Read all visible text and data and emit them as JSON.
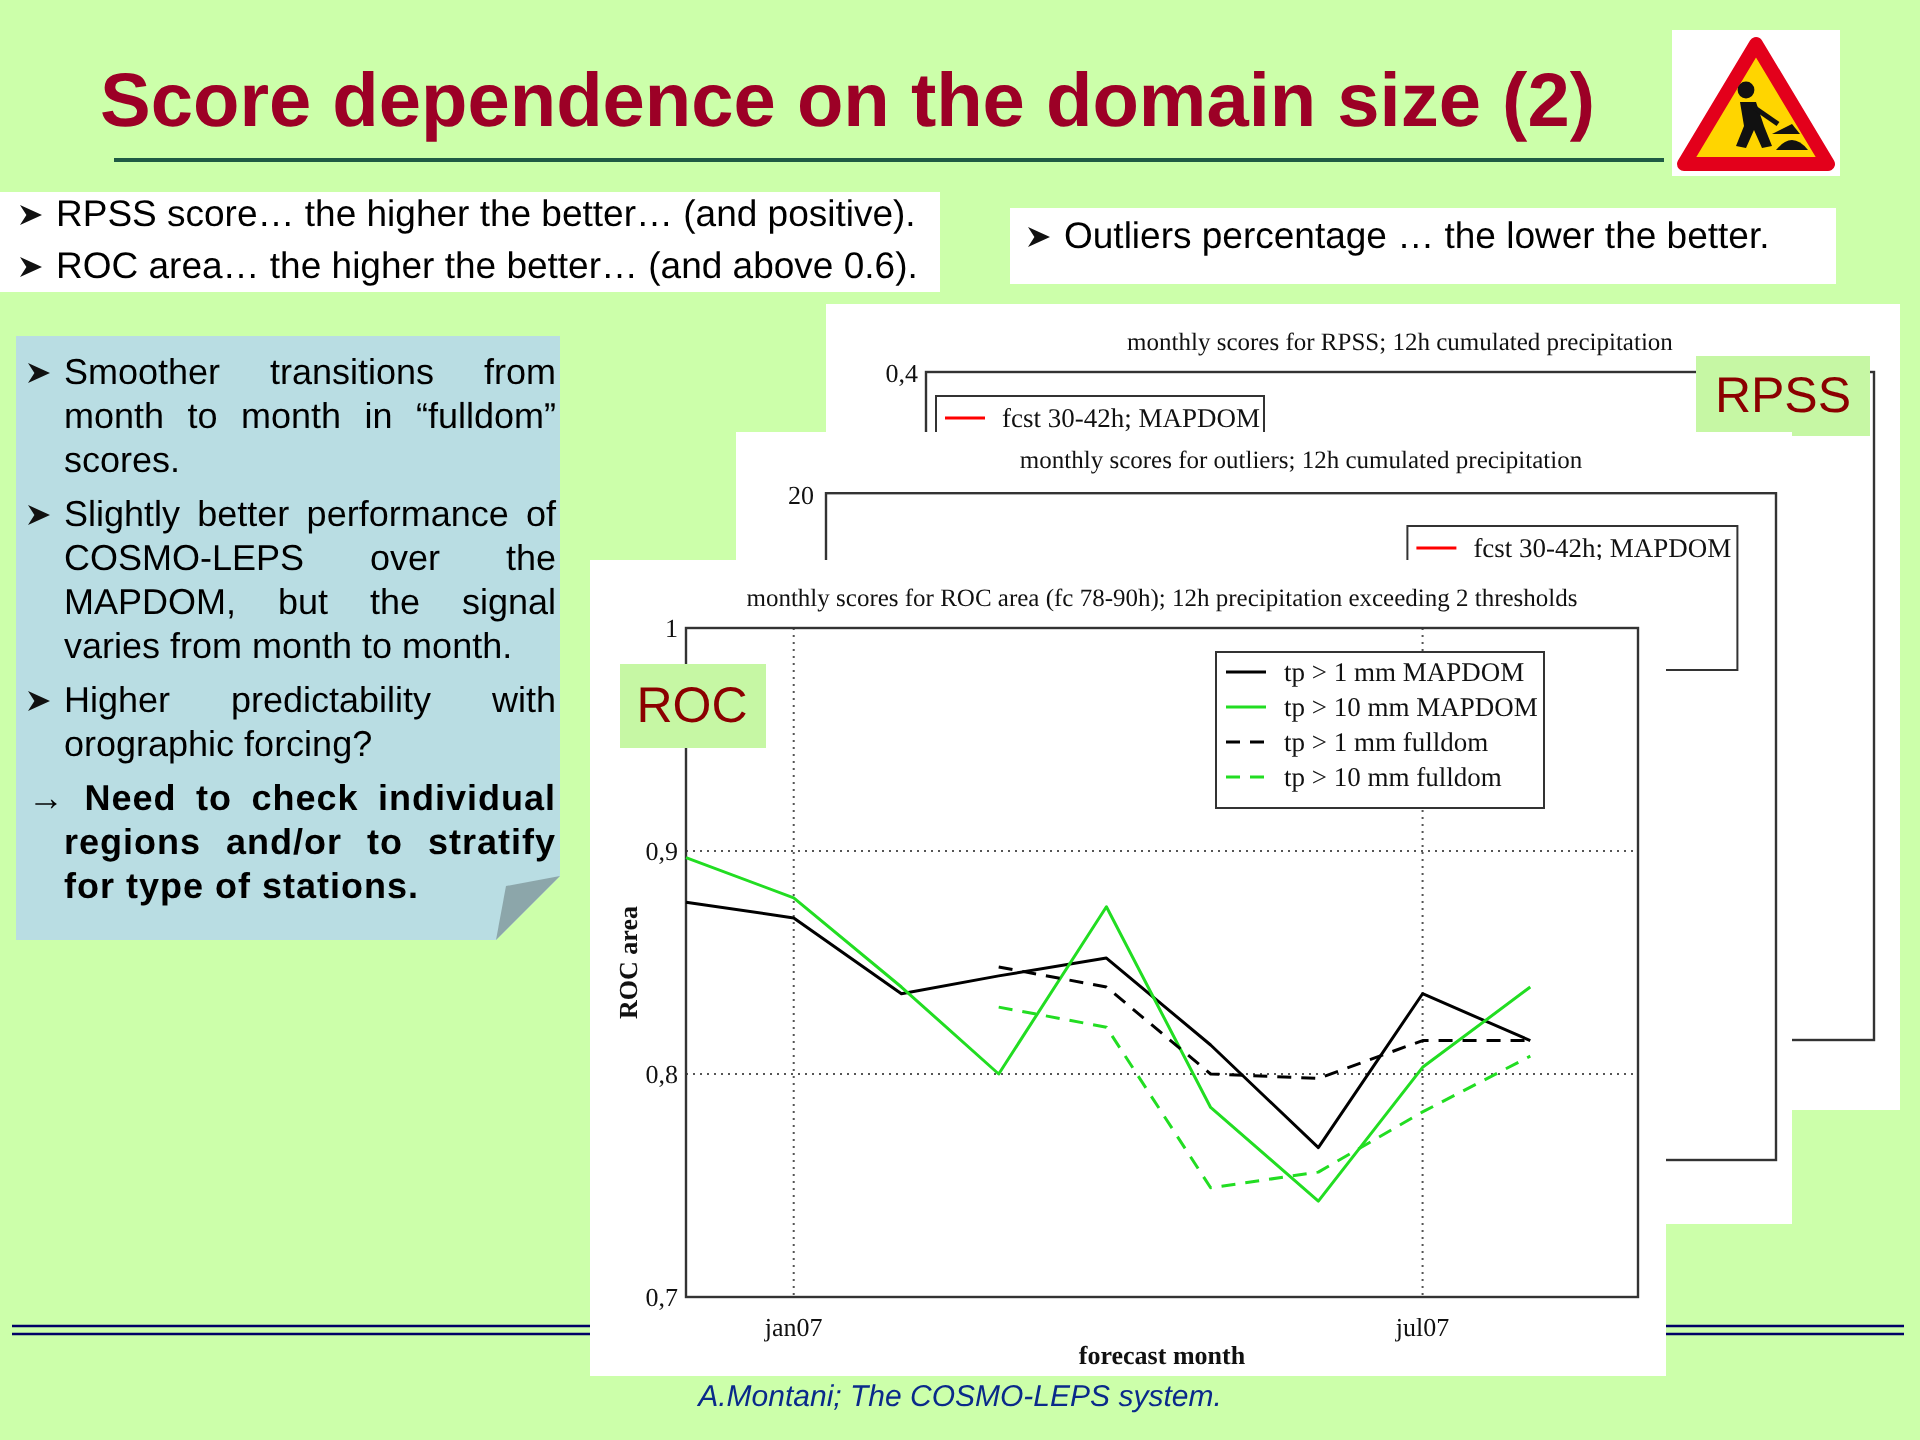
{
  "chart_data": [
    {
      "type": "other",
      "title": "Score dependence on the domain size (2)",
      "annotations": [
        "RPSS score… the higher the better… (and positive).",
        "ROC area… the higher the better… (and above 0.6).",
        "Outliers percentage … the lower the better.",
        "Smoother transitions from month to month in “fulldom” scores.",
        "Slightly better performance of COSMO-LEPS over the MAPDOM, but the signal varies from month to month.",
        "Higher predictability with orographic forcing?",
        "→ Need to check individual regions and/or to stratify for type of stations.",
        "A.Montani; The COSMO-LEPS system."
      ]
    },
    {
      "type": "other",
      "title": "monthly scores for RPSS; 12h cumulated precipitation",
      "annotations": [
        "0,4",
        "fcst 30-42h; MAPDOM",
        "RPSS"
      ]
    },
    {
      "type": "other",
      "title": "monthly scores for outliers; 12h cumulated precipitation",
      "annotations": [
        "20",
        "fcst 30-42h; MAPDOM"
      ]
    },
    {
      "type": "line",
      "title": "monthly scores for ROC area (fc 78-90h); 12h precipitation exceeding 2 thresholds",
      "xlabel": "forecast month",
      "ylabel": "ROC area",
      "annotations": [
        "ROC"
      ],
      "x": [
        "2006-12",
        "2007-01",
        "2007-02",
        "2007-03",
        "2007-04",
        "2007-05",
        "2007-06",
        "2007-07",
        "2007-08"
      ],
      "xlim": [
        "2006-12",
        "2007-09"
      ],
      "xticks": [
        {
          "value": "2007-01",
          "label": "jan07"
        },
        {
          "value": "2007-07",
          "label": "jul07"
        }
      ],
      "ylim": [
        0.7,
        1
      ],
      "yticks": [
        {
          "value": 0.7,
          "label": "0,7"
        },
        {
          "value": 0.8,
          "label": "0,8"
        },
        {
          "value": 0.9,
          "label": "0,9"
        },
        1
      ],
      "grid": true,
      "legend": "top right",
      "series": [
        {
          "name": "tp > 1 mm MAPDOM",
          "color": "#000000",
          "values": [
            0.877,
            0.87,
            0.836,
            0.844,
            0.852,
            0.813,
            0.767,
            0.836,
            0.815
          ]
        },
        {
          "name": "tp > 10 mm MAPDOM",
          "color": "#22dd22",
          "values": [
            0.897,
            0.879,
            0.839,
            0.8,
            0.875,
            0.785,
            0.743,
            0.803,
            0.839
          ]
        },
        {
          "name": "tp > 1 mm fulldom",
          "color": "#000000",
          "line_style": "dashed",
          "values": [
            null,
            null,
            null,
            0.848,
            0.839,
            0.8,
            0.798,
            0.815,
            0.815
          ]
        },
        {
          "name": "tp > 10 mm fulldom",
          "color": "#22dd22",
          "line_style": "dashed",
          "values": [
            null,
            null,
            null,
            0.83,
            0.821,
            0.749,
            0.756,
            0.783,
            0.808
          ]
        }
      ]
    }
  ]
}
